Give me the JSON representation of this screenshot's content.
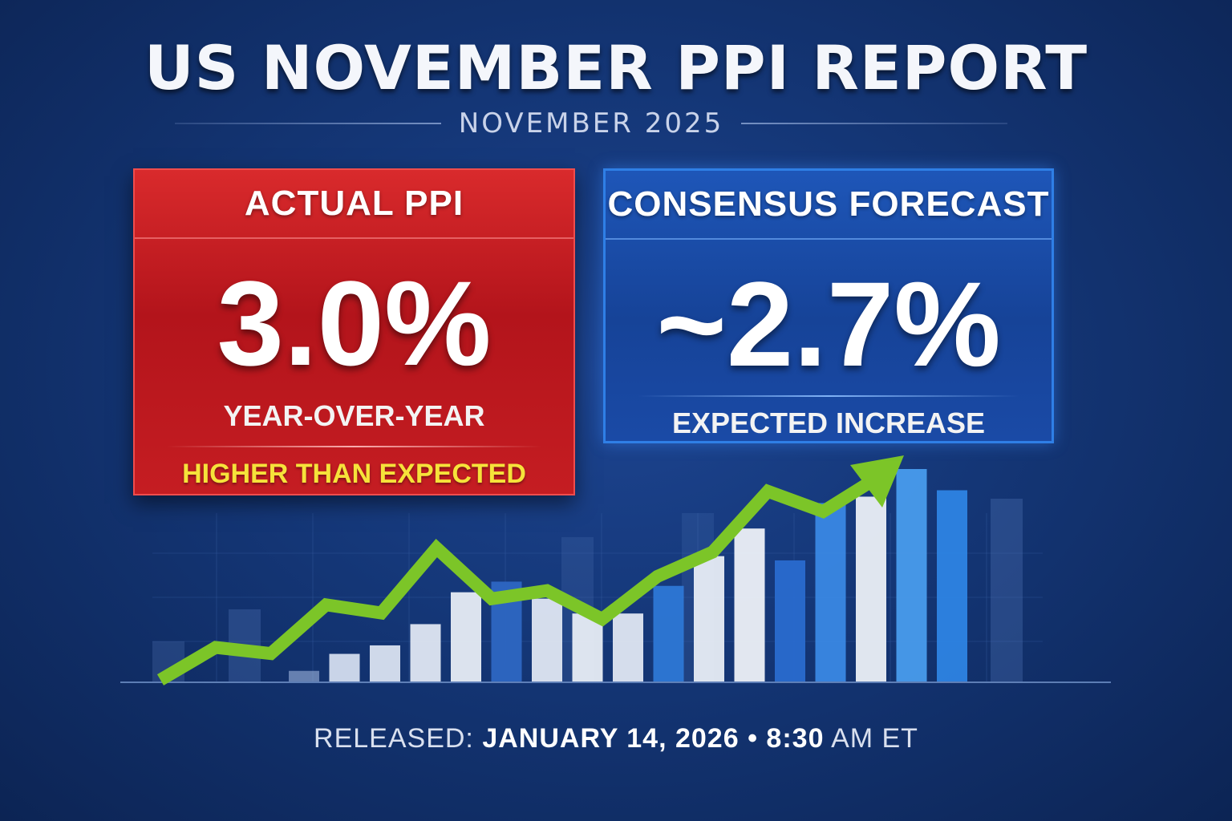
{
  "header": {
    "title": "US NOVEMBER PPI REPORT",
    "subtitle": "NOVEMBER 2025"
  },
  "actual_card": {
    "heading": "ACTUAL PPI",
    "value": "3.0%",
    "label": "YEAR-OVER-YEAR",
    "note": "HIGHER THAN EXPECTED"
  },
  "forecast_card": {
    "heading": "CONSENSUS FORECAST",
    "value": "~2.7%",
    "label": "EXPECTED INCREASE"
  },
  "footer": {
    "released_label": "RELEASED:",
    "date": "JANUARY 14, 2026",
    "bullet": "•",
    "time": "8:30",
    "time_suffix": "AM ET"
  },
  "colors": {
    "background": "#143676",
    "actual_red": "#c51d22",
    "forecast_blue": "#1a4aa6",
    "highlight_yellow": "#f6e23a",
    "trend_green": "#7cc528"
  },
  "graphic": {
    "bar_levels": [
      0.05,
      0.13,
      0.17,
      0.27,
      0.42,
      0.47,
      0.39,
      0.32,
      0.32,
      0.45,
      0.59,
      0.72,
      0.57,
      0.84,
      0.87,
      1.0,
      0.9
    ],
    "trend_points": [
      0.0,
      0.16,
      0.13,
      0.37,
      0.33,
      0.65,
      0.4,
      0.44,
      0.3,
      0.51,
      0.63,
      0.93,
      0.83,
      1.0
    ]
  }
}
